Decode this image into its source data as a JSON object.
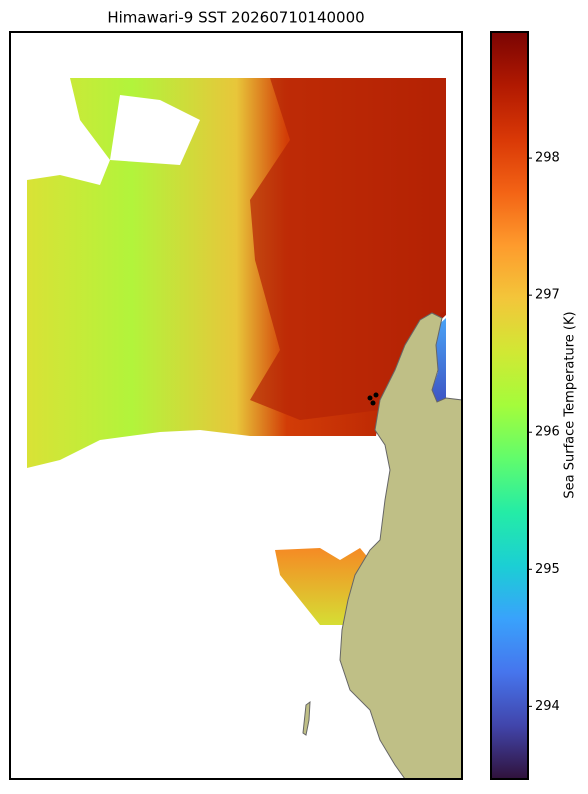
{
  "title": "Himawari-9 SST 20260710140000",
  "colorbar": {
    "label": "Sea Surface Temperature (K)",
    "lim": [
      293.47,
      298.92
    ],
    "ticks": [
      294,
      295,
      296,
      297,
      298
    ],
    "colormap": "turbo"
  }
}
